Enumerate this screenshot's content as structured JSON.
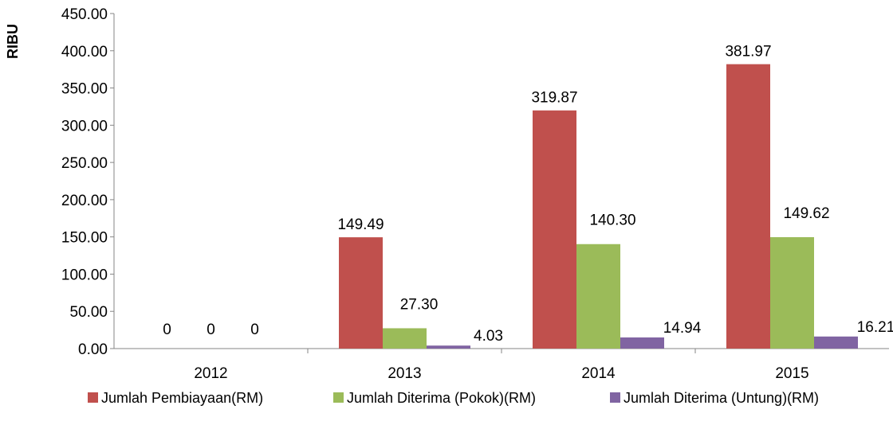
{
  "chart_data": {
    "type": "bar",
    "ylabel": "RIBU",
    "xlabel": "",
    "ylim": [
      0,
      450
    ],
    "y_ticks": [
      "0.00",
      "50.00",
      "100.00",
      "150.00",
      "200.00",
      "250.00",
      "300.00",
      "350.00",
      "400.00",
      "450.00"
    ],
    "categories": [
      "2012",
      "2013",
      "2014",
      "2015"
    ],
    "grid": false,
    "legend_position": "bottom",
    "series": [
      {
        "name": "Jumlah Pembiayaan(RM)",
        "color": "#C0504D",
        "values": [
          0,
          149.49,
          319.87,
          381.97
        ],
        "labels": [
          "0",
          "149.49",
          "319.87",
          "381.97"
        ]
      },
      {
        "name": "Jumlah Diterima (Pokok)(RM)",
        "color": "#9BBB59",
        "values": [
          0,
          27.3,
          140.3,
          149.62
        ],
        "labels": [
          "0",
          "27.30",
          "140.30",
          "149.62"
        ]
      },
      {
        "name": "Jumlah Diterima (Untung)(RM)",
        "color": "#8064A2",
        "values": [
          0,
          4.03,
          14.94,
          16.21
        ],
        "labels": [
          "0",
          "4.03",
          "14.94",
          "16.21"
        ]
      }
    ]
  }
}
